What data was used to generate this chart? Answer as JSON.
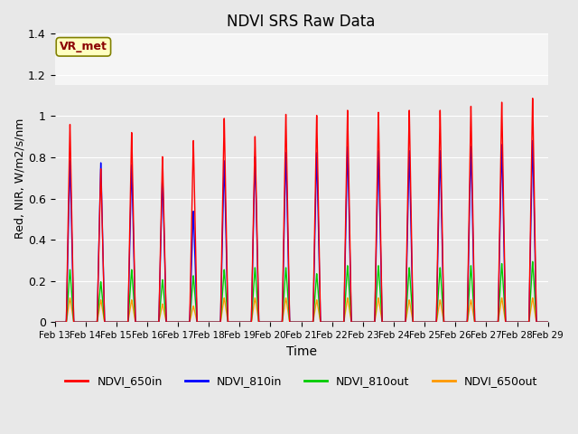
{
  "title": "NDVI SRS Raw Data",
  "xlabel": "Time",
  "ylabel": "Red, NIR, W/m2/s/nm",
  "ylim": [
    0.0,
    1.4
  ],
  "yticks": [
    0.0,
    0.2,
    0.4,
    0.6,
    0.8,
    1.0,
    1.2,
    1.4
  ],
  "annotation_text": "VR_met",
  "series": {
    "NDVI_650in": {
      "color": "#ff0000"
    },
    "NDVI_810in": {
      "color": "#0000ff"
    },
    "NDVI_810out": {
      "color": "#00cc00"
    },
    "NDVI_650out": {
      "color": "#ff9900"
    }
  },
  "peaks_650in": [
    0.98,
    0.76,
    0.94,
    0.82,
    0.9,
    1.01,
    0.92,
    1.03,
    1.025,
    1.05,
    1.04,
    1.05,
    1.05,
    1.07,
    1.09,
    1.11
  ],
  "peaks_810in": [
    0.8,
    0.79,
    0.78,
    0.73,
    0.55,
    0.8,
    0.82,
    0.84,
    0.84,
    0.87,
    0.85,
    0.85,
    0.85,
    0.87,
    0.88,
    0.9
  ],
  "peaks_810out": [
    0.26,
    0.2,
    0.26,
    0.21,
    0.23,
    0.26,
    0.27,
    0.27,
    0.24,
    0.28,
    0.28,
    0.27,
    0.27,
    0.28,
    0.29,
    0.3
  ],
  "peaks_650out": [
    0.12,
    0.11,
    0.11,
    0.09,
    0.08,
    0.12,
    0.12,
    0.12,
    0.11,
    0.12,
    0.12,
    0.11,
    0.11,
    0.11,
    0.12,
    0.12
  ],
  "num_days": 16,
  "start_day": 13,
  "figsize": [
    6.4,
    4.8
  ],
  "dpi": 100,
  "fig_facecolor": "#e8e8e8",
  "ax_facecolor": "#e8e8e8",
  "grid_color": "#ffffff",
  "upper_band_color": "#f5f5f5",
  "upper_band_threshold": 1.15,
  "lw": 1.0
}
